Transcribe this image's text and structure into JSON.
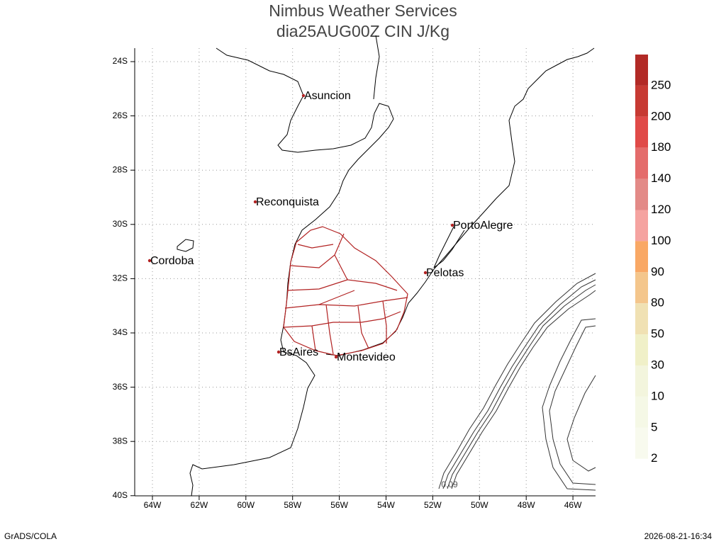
{
  "header": {
    "title": "Nimbus Weather Services",
    "subtitle": "dia25AUG00Z CIN J/Kg"
  },
  "map": {
    "lat_labels": [
      "24S",
      "26S",
      "28S",
      "30S",
      "32S",
      "34S",
      "36S",
      "38S",
      "40S"
    ],
    "lon_labels": [
      "64W",
      "62W",
      "60W",
      "58W",
      "56W",
      "54W",
      "52W",
      "50W",
      "48W",
      "46W"
    ],
    "cities": [
      "Asuncion",
      "Reconquista",
      "PortoAlegre",
      "Cordoba",
      "Pelotas",
      "BsAires",
      "Montevideo"
    ],
    "contour_label": "0.09"
  },
  "colorbar": {
    "labels": [
      "250",
      "200",
      "180",
      "140",
      "120",
      "100",
      "90",
      "80",
      "50",
      "30",
      "10",
      "5",
      "2"
    ]
  },
  "footer": {
    "left": "GrADS/COLA",
    "right": "2026-08-21-16:34"
  }
}
